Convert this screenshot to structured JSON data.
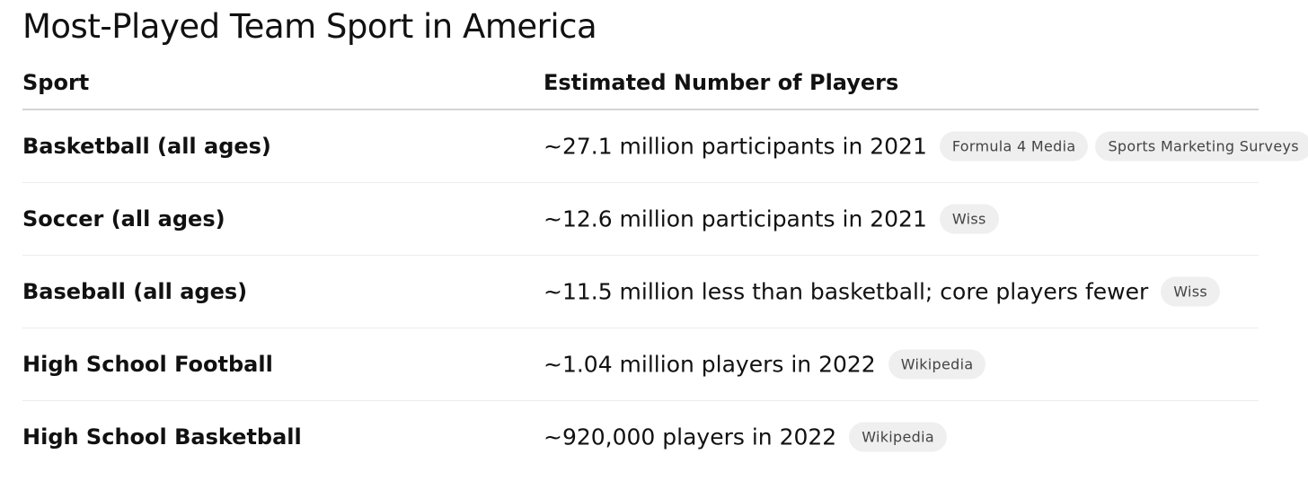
{
  "title": "Most-Played Team Sport in America",
  "table": {
    "headers": {
      "sport": "Sport",
      "players": "Estimated Number of Players"
    },
    "rows": [
      {
        "sport": "Basketball (all ages)",
        "players": "~27.1 million participants in 2021",
        "sources": [
          "Formula 4 Media",
          "Sports Marketing Surveys"
        ]
      },
      {
        "sport": "Soccer (all ages)",
        "players": "~12.6 million participants in 2021",
        "sources": [
          "Wiss"
        ]
      },
      {
        "sport": "Baseball (all ages)",
        "players": "~11.5 million less than basketball; core players fewer",
        "sources": [
          "Wiss"
        ]
      },
      {
        "sport": "High School Football",
        "players": "~1.04 million players in 2022",
        "sources": [
          "Wikipedia"
        ]
      },
      {
        "sport": "High School Basketball",
        "players": "~920,000 players in 2022",
        "sources": [
          "Wikipedia"
        ]
      }
    ]
  },
  "colors": {
    "text": "#111111",
    "badge_background": "#efefef",
    "badge_text": "#444444",
    "header_rule": "#d4d4d4",
    "row_rule": "#ececec"
  }
}
